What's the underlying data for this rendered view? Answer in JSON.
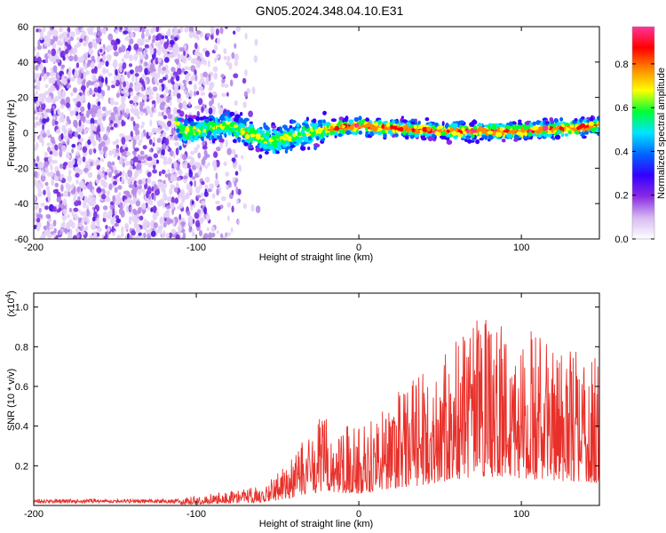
{
  "figure_title": "GN05.2024.348.04.10.E31",
  "chart_data": [
    {
      "type": "heatmap",
      "title": "GN05.2024.348.04.10.E31",
      "xlabel": "Height of straight line (km)",
      "ylabel": "Frequency (Hz)",
      "xlim": [
        -200,
        148
      ],
      "ylim": [
        -60,
        60
      ],
      "x_ticks": [
        -200,
        -100,
        0,
        100
      ],
      "y_ticks": [
        -60,
        -40,
        -20,
        0,
        20,
        40,
        60
      ],
      "colorbar": {
        "label": "Normalized spectral amplitude",
        "range": [
          0,
          0.97
        ],
        "ticks": [
          "0.0",
          "0.2",
          "0.4",
          "0.6",
          "0.8"
        ],
        "colormap": [
          "#ffffff",
          "#d7b9f2",
          "#8a2be2",
          "#3300ff",
          "#0066ff",
          "#00e5ff",
          "#00ff33",
          "#ffff00",
          "#ff8800",
          "#ff0000",
          "#ff3399"
        ]
      },
      "ridge": {
        "description_points": [
          {
            "x": -110,
            "freq": 0
          },
          {
            "x": -80,
            "freq": 4
          },
          {
            "x": -55,
            "freq": -5
          },
          {
            "x": -40,
            "freq": -2
          },
          {
            "x": -20,
            "freq": 2
          },
          {
            "x": 0,
            "freq": 4
          },
          {
            "x": 50,
            "freq": 1
          },
          {
            "x": 100,
            "freq": 1
          },
          {
            "x": 148,
            "freq": 4
          }
        ]
      }
    },
    {
      "type": "line",
      "xlabel": "Height of straight line (km)",
      "ylabel": "SNR (10 * v/v)",
      "y_multiplier": "(x10",
      "y_multiplier_exp": "4",
      "xlim": [
        -200,
        148
      ],
      "ylim": [
        0,
        1.07
      ],
      "x_ticks": [
        -200,
        -100,
        0,
        100
      ],
      "y_ticks": [
        "0.2",
        "0.4",
        "0.6",
        "0.8",
        "1.0"
      ],
      "color": "#e8302a",
      "envelope": [
        {
          "x": -200,
          "y": 0.03
        },
        {
          "x": -110,
          "y": 0.035
        },
        {
          "x": -90,
          "y": 0.06
        },
        {
          "x": -60,
          "y": 0.1
        },
        {
          "x": -40,
          "y": 0.25
        },
        {
          "x": -25,
          "y": 0.45
        },
        {
          "x": 0,
          "y": 0.4
        },
        {
          "x": 20,
          "y": 0.55
        },
        {
          "x": 50,
          "y": 0.75
        },
        {
          "x": 70,
          "y": 0.95
        },
        {
          "x": 100,
          "y": 0.9
        },
        {
          "x": 130,
          "y": 0.8
        },
        {
          "x": 148,
          "y": 0.75
        }
      ]
    }
  ]
}
